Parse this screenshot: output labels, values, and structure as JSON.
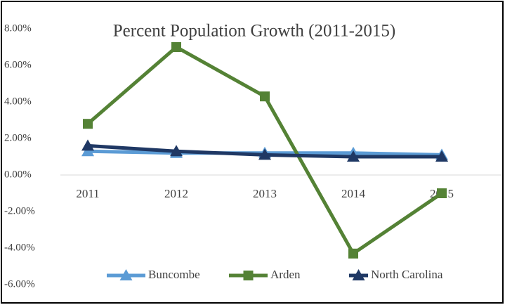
{
  "chart_data": {
    "type": "line",
    "title": "Percent Population Growth (2011-2015)",
    "categories": [
      "2011",
      "2012",
      "2013",
      "2014",
      "2015"
    ],
    "series": [
      {
        "name": "Buncombe",
        "color": "#5b9bd5",
        "marker": "triangle",
        "values": [
          1.3,
          1.2,
          1.2,
          1.2,
          1.1
        ]
      },
      {
        "name": "Arden",
        "color": "#548235",
        "marker": "square",
        "values": [
          2.8,
          7.0,
          4.3,
          -4.3,
          -1.0
        ]
      },
      {
        "name": "North Carolina",
        "color": "#1f3864",
        "marker": "triangle",
        "values": [
          1.6,
          1.3,
          1.1,
          1.0,
          1.0
        ]
      }
    ],
    "ylim": [
      -6,
      8
    ],
    "yticks": [
      {
        "value": -6,
        "label": "-6.00%"
      },
      {
        "value": -4,
        "label": "-4.00%"
      },
      {
        "value": -2,
        "label": "-2.00%"
      },
      {
        "value": 0,
        "label": "0.00%"
      },
      {
        "value": 2,
        "label": "2.00%"
      },
      {
        "value": 4,
        "label": "4.00%"
      },
      {
        "value": 6,
        "label": "6.00%"
      },
      {
        "value": 8,
        "label": "8.00%"
      }
    ],
    "grid": false,
    "legend": "bottom"
  }
}
